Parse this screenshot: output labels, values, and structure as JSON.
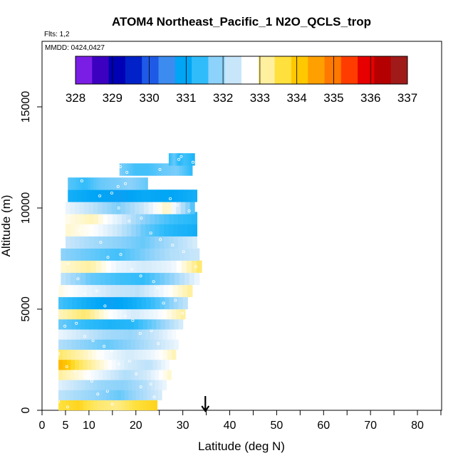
{
  "chart_data": {
    "type": "heatmap",
    "title": "ATOM4 Northeast_Pacific_1 N2O_QCLS_trop",
    "flights_label": "Flts: 1,2",
    "dates_label": "MMDD: 0424,0427",
    "xlabel": "Latitude (deg N)",
    "ylabel": "Altitude (m)",
    "xlim": [
      0,
      85
    ],
    "ylim": [
      0,
      18500
    ],
    "x_ticks": [
      0,
      5,
      10,
      20,
      30,
      40,
      50,
      60,
      70,
      80
    ],
    "x_minor_ticks": [
      15,
      25,
      35,
      45,
      55,
      65,
      75,
      85
    ],
    "y_ticks": [
      0,
      5000,
      10000,
      15000
    ],
    "marker_latitude": 34.8,
    "colorbar": {
      "ticks": [
        328,
        329,
        330,
        331,
        332,
        333,
        334,
        335,
        336,
        337
      ],
      "colors": [
        "#7a1ee6",
        "#3c00c0",
        "#0000b4",
        "#0022c8",
        "#1e5ae6",
        "#3c8cf0",
        "#00a5f5",
        "#30bcfa",
        "#8cd2fa",
        "#c8e6fa",
        "#ffffff",
        "#fff0a0",
        "#ffe03c",
        "#ffc800",
        "#ffa000",
        "#ff7800",
        "#ff3c00",
        "#e60000",
        "#b40000",
        "#a01a1a"
      ]
    },
    "bands": [
      {
        "alt": 300,
        "lat_min": 3.5,
        "lat_max": 24.5,
        "values": [
          333.8,
          333.9,
          333.6,
          333.5,
          333.8,
          333.9
        ]
      },
      {
        "alt": 800,
        "lat_min": 3.5,
        "lat_max": 25.5,
        "values": [
          332.4,
          332.2,
          332.0,
          331.8,
          332.2,
          332.6
        ]
      },
      {
        "alt": 1300,
        "lat_min": 3.5,
        "lat_max": 26.5,
        "values": [
          332.7,
          332.4,
          332.1,
          332.0,
          332.3,
          332.8
        ]
      },
      {
        "alt": 1800,
        "lat_min": 3.5,
        "lat_max": 27.5,
        "values": [
          333.4,
          333.1,
          332.7,
          332.3,
          332.6,
          333.2
        ]
      },
      {
        "alt": 2300,
        "lat_min": 3.5,
        "lat_max": 28.0,
        "values": [
          334.2,
          333.6,
          333.1,
          332.6,
          332.4,
          333.0
        ]
      },
      {
        "alt": 2800,
        "lat_min": 3.5,
        "lat_max": 28.5,
        "values": [
          333.6,
          333.3,
          332.9,
          332.6,
          332.8,
          333.3
        ]
      },
      {
        "alt": 3300,
        "lat_min": 3.5,
        "lat_max": 29.0,
        "values": [
          332.3,
          332.0,
          331.8,
          332.0,
          332.4,
          332.8
        ]
      },
      {
        "alt": 3800,
        "lat_min": 3.5,
        "lat_max": 29.5,
        "values": [
          332.8,
          332.5,
          332.2,
          332.1,
          332.5,
          333.0
        ]
      },
      {
        "alt": 4300,
        "lat_min": 3.5,
        "lat_max": 30.0,
        "values": [
          331.8,
          331.5,
          331.3,
          331.4,
          331.9,
          332.6
        ]
      },
      {
        "alt": 4800,
        "lat_min": 3.5,
        "lat_max": 30.5,
        "values": [
          333.3,
          333.6,
          333.0,
          332.6,
          332.9,
          333.4
        ]
      },
      {
        "alt": 5300,
        "lat_min": 3.5,
        "lat_max": 31.0,
        "values": [
          331.6,
          331.2,
          330.9,
          331.2,
          331.7,
          332.4
        ]
      },
      {
        "alt": 5900,
        "lat_min": 3.5,
        "lat_max": 32.0,
        "values": [
          333.1,
          332.8,
          332.5,
          332.4,
          332.9,
          333.4
        ]
      },
      {
        "alt": 6500,
        "lat_min": 4.0,
        "lat_max": 33.5,
        "values": [
          332.4,
          331.8,
          331.6,
          331.5,
          332.0,
          332.8
        ]
      },
      {
        "alt": 7100,
        "lat_min": 4.0,
        "lat_max": 34.0,
        "values": [
          333.2,
          333.4,
          332.8,
          332.6,
          332.8,
          333.6
        ]
      },
      {
        "alt": 7700,
        "lat_min": 4.0,
        "lat_max": 33.5,
        "values": [
          332.0,
          331.8,
          331.6,
          331.9,
          332.3,
          332.5
        ]
      },
      {
        "alt": 8300,
        "lat_min": 5.0,
        "lat_max": 33.0,
        "values": [
          332.5,
          332.2,
          332.0,
          331.8,
          332.2,
          332.6
        ]
      },
      {
        "alt": 8900,
        "lat_min": 5.0,
        "lat_max": 33.0,
        "values": [
          333.2,
          333.0,
          332.5,
          331.8,
          331.4,
          331.2
        ]
      },
      {
        "alt": 9500,
        "lat_min": 5.0,
        "lat_max": 33.0,
        "values": [
          333.1,
          333.3,
          332.7,
          332.0,
          331.6,
          331.4
        ]
      },
      {
        "alt": 10000,
        "lat_min": 5.0,
        "lat_max": 32.5,
        "values": [
          332.8,
          332.4,
          331.9,
          332.5,
          333.3,
          331.7
        ]
      },
      {
        "alt": 10600,
        "lat_min": 5.5,
        "lat_max": 33.0,
        "values": [
          331.2,
          331.0,
          330.9,
          331.1,
          331.0,
          331.2
        ]
      },
      {
        "alt": 11200,
        "lat_min": 5.5,
        "lat_max": 22.5,
        "values": [
          331.7,
          331.5,
          331.8,
          331.9,
          332.0,
          331.8
        ]
      },
      {
        "alt": 11900,
        "lat_min": 16.5,
        "lat_max": 32.0,
        "values": [
          331.9,
          331.6,
          331.6,
          331.8,
          331.9,
          331.5
        ]
      },
      {
        "alt": 12400,
        "lat_min": 27.0,
        "lat_max": 32.5,
        "values": [
          331.5,
          331.8,
          331.4,
          331.6,
          331.5,
          331.3
        ]
      }
    ]
  }
}
